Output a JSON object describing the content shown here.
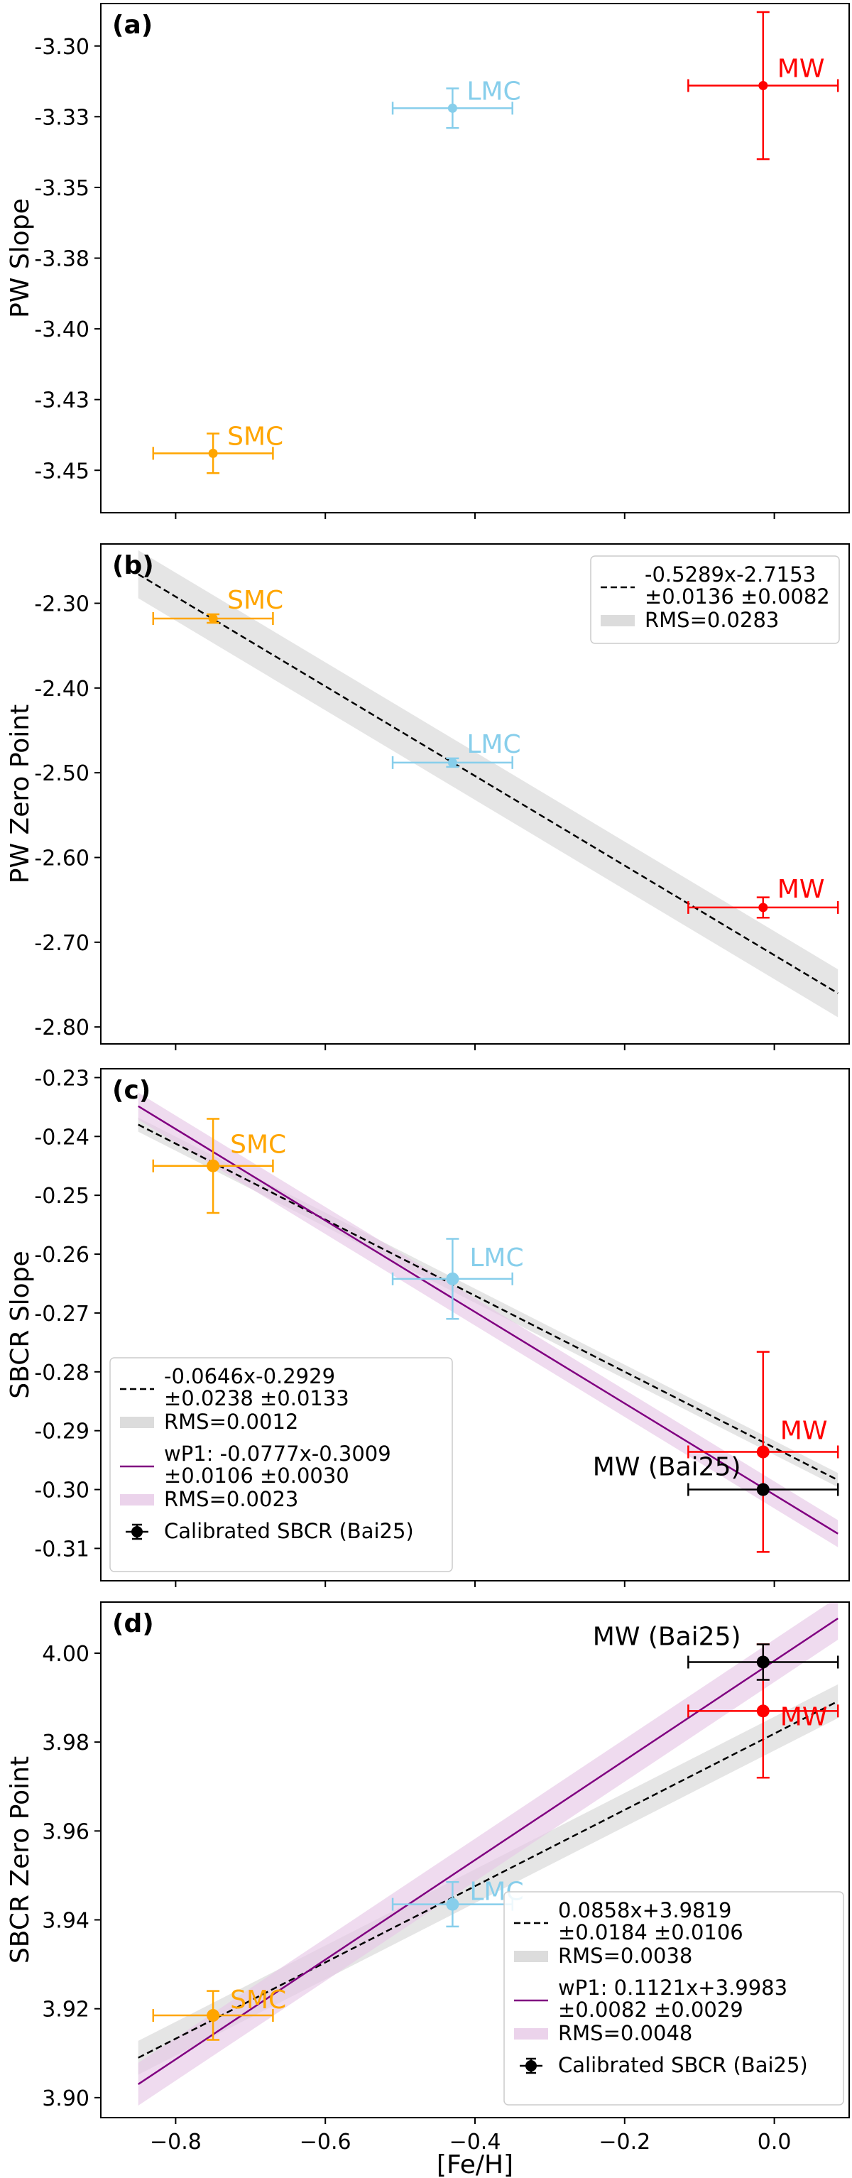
{
  "colors": {
    "SMC": "#ffa500",
    "LMC": "#87ceeb",
    "MW": "#ff0000",
    "MW_Bai25": "#000000",
    "fit": "#000000",
    "wP1": "#800080",
    "rms_band": "#d3d3d3",
    "wp1_band": "#e6c8e6"
  },
  "chart_data": [
    {
      "type": "scatter",
      "panel": "(a)",
      "ylabel": "PW Slope",
      "xlim": [
        -0.9,
        0.1
      ],
      "ylim": [
        -3.465,
        -3.285
      ],
      "yticks": [
        "-3.30",
        "-3.33",
        "-3.35",
        "-3.38",
        "-3.40",
        "-3.43",
        "-3.45"
      ],
      "ytick_values": [
        -3.3,
        -3.325,
        -3.35,
        -3.375,
        -3.4,
        -3.425,
        -3.45
      ],
      "points": [
        {
          "label": "SMC",
          "x": -0.75,
          "y": -3.444,
          "xerr": 0.08,
          "yerr": 0.007
        },
        {
          "label": "LMC",
          "x": -0.43,
          "y": -3.322,
          "xerr": 0.08,
          "yerr": 0.007
        },
        {
          "label": "MW",
          "x": -0.015,
          "y": -3.314,
          "xerr": 0.1,
          "yerr": 0.026
        }
      ]
    },
    {
      "type": "scatter",
      "panel": "(b)",
      "ylabel": "PW Zero Point",
      "xlim": [
        -0.9,
        0.1
      ],
      "ylim": [
        -2.82,
        -2.23
      ],
      "yticks": [
        "-2.30",
        "-2.40",
        "-2.50",
        "-2.60",
        "-2.70",
        "-2.80"
      ],
      "ytick_values": [
        -2.3,
        -2.4,
        -2.5,
        -2.6,
        -2.7,
        -2.8
      ],
      "points": [
        {
          "label": "SMC",
          "x": -0.75,
          "y": -2.318,
          "xerr": 0.08,
          "yerr": 0.005
        },
        {
          "label": "LMC",
          "x": -0.43,
          "y": -2.488,
          "xerr": 0.08,
          "yerr": 0.005
        },
        {
          "label": "MW",
          "x": -0.015,
          "y": -2.659,
          "xerr": 0.1,
          "yerr": 0.012
        }
      ],
      "fits": [
        {
          "slope": -0.5289,
          "intercept": -2.7153,
          "rms": 0.0283,
          "style": "dashed",
          "legend": [
            "-0.5289x-2.7153",
            "±0.0136    ±0.0082"
          ],
          "band_legend": "RMS=0.0283"
        }
      ]
    },
    {
      "type": "scatter",
      "panel": "(c)",
      "ylabel": "SBCR Slope",
      "xlim": [
        -0.9,
        0.1
      ],
      "ylim": [
        -0.3155,
        -0.2285
      ],
      "yticks": [
        "-0.23",
        "-0.24",
        "-0.25",
        "-0.26",
        "-0.27",
        "-0.28",
        "-0.29",
        "-0.30",
        "-0.31"
      ],
      "ytick_values": [
        -0.23,
        -0.24,
        -0.25,
        -0.26,
        -0.27,
        -0.28,
        -0.29,
        -0.3,
        -0.31
      ],
      "points": [
        {
          "label": "SMC",
          "x": -0.75,
          "y": -0.245,
          "xerr": 0.08,
          "yerr": 0.008
        },
        {
          "label": "LMC",
          "x": -0.43,
          "y": -0.2642,
          "xerr": 0.08,
          "yerr": 0.0068
        },
        {
          "label": "MW",
          "x": -0.015,
          "y": -0.2936,
          "xerr": 0.1,
          "yerr": 0.017
        }
      ],
      "calibrated": {
        "label": "MW (Bai25)",
        "x": -0.015,
        "y": -0.3,
        "xerr": 0.1,
        "yerr": 0
      },
      "fits": [
        {
          "slope": -0.0646,
          "intercept": -0.2929,
          "rms": 0.0012,
          "style": "dashed",
          "legend": [
            "-0.0646x-0.2929",
            "±0.0238    ±0.0133"
          ],
          "band_legend": "RMS=0.0012"
        },
        {
          "slope": -0.0777,
          "intercept": -0.3009,
          "rms": 0.0023,
          "style": "solid",
          "legend": [
            "wP1: -0.0777x-0.3009",
            "±0.0106    ±0.0030"
          ],
          "band_legend": "RMS=0.0023"
        }
      ],
      "calibrated_legend": "Calibrated SBCR (Bai25)"
    },
    {
      "type": "scatter",
      "panel": "(d)",
      "ylabel": "SBCR Zero Point",
      "xlabel": "[Fe/H]",
      "xlim": [
        -0.9,
        0.1
      ],
      "ylim": [
        3.8955,
        4.0115
      ],
      "yticks": [
        "3.90",
        "3.92",
        "3.94",
        "3.96",
        "3.98",
        "4.00"
      ],
      "ytick_values": [
        3.9,
        3.92,
        3.94,
        3.96,
        3.98,
        4.0
      ],
      "xticks": [
        "−0.8",
        "−0.6",
        "−0.4",
        "−0.2",
        "0.0"
      ],
      "xtick_values": [
        -0.8,
        -0.6,
        -0.4,
        -0.2,
        0.0
      ],
      "points": [
        {
          "label": "SMC",
          "x": -0.75,
          "y": 3.9185,
          "xerr": 0.08,
          "yerr": 0.0055
        },
        {
          "label": "LMC",
          "x": -0.43,
          "y": 3.9435,
          "xerr": 0.08,
          "yerr": 0.005
        },
        {
          "label": "MW",
          "x": -0.015,
          "y": 3.987,
          "xerr": 0.1,
          "yerr": 0.015
        }
      ],
      "calibrated": {
        "label": "MW (Bai25)",
        "x": -0.015,
        "y": 3.998,
        "xerr": 0.1,
        "yerr": 0.004
      },
      "fits": [
        {
          "slope": 0.0858,
          "intercept": 3.9819,
          "rms": 0.0038,
          "style": "dashed",
          "legend": [
            "0.0858x+3.9819",
            "±0.0184    ±0.0106"
          ],
          "band_legend": "RMS=0.0038"
        },
        {
          "slope": 0.1121,
          "intercept": 3.9983,
          "rms": 0.0048,
          "style": "solid",
          "legend": [
            "wP1: 0.1121x+3.9983",
            "±0.0082    ±0.0029"
          ],
          "band_legend": "RMS=0.0048"
        }
      ],
      "calibrated_legend": "Calibrated SBCR (Bai25)"
    }
  ]
}
